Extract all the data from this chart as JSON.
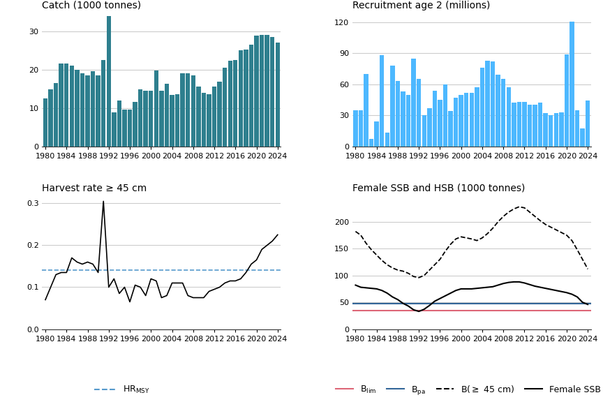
{
  "catch_years": [
    1980,
    1981,
    1982,
    1983,
    1984,
    1985,
    1986,
    1987,
    1988,
    1989,
    1990,
    1991,
    1992,
    1993,
    1994,
    1995,
    1996,
    1997,
    1998,
    1999,
    2000,
    2001,
    2002,
    2003,
    2004,
    2005,
    2006,
    2007,
    2008,
    2009,
    2010,
    2011,
    2012,
    2013,
    2014,
    2015,
    2016,
    2017,
    2018,
    2019,
    2020,
    2021,
    2022,
    2023,
    2024
  ],
  "catch_values": [
    12.5,
    14.8,
    16.5,
    21.5,
    21.5,
    21.0,
    20.0,
    19.0,
    18.5,
    19.5,
    18.5,
    22.5,
    34.0,
    8.8,
    12.0,
    9.5,
    9.5,
    11.5,
    14.8,
    14.5,
    14.5,
    19.7,
    14.5,
    16.3,
    13.3,
    13.5,
    19.0,
    19.0,
    18.5,
    15.5,
    14.0,
    13.5,
    15.5,
    16.8,
    20.5,
    22.3,
    22.5,
    25.0,
    25.2,
    26.5,
    28.8,
    29.0,
    29.0,
    28.5,
    27.0
  ],
  "recruit_years": [
    1980,
    1981,
    1982,
    1983,
    1984,
    1985,
    1986,
    1987,
    1988,
    1989,
    1990,
    1991,
    1992,
    1993,
    1994,
    1995,
    1996,
    1997,
    1998,
    1999,
    2000,
    2001,
    2002,
    2003,
    2004,
    2005,
    2006,
    2007,
    2008,
    2009,
    2010,
    2011,
    2012,
    2013,
    2014,
    2015,
    2016,
    2017,
    2018,
    2019,
    2020,
    2021,
    2022,
    2023,
    2024
  ],
  "recruit_values": [
    35,
    35,
    70,
    7,
    24,
    88,
    13,
    78,
    63,
    53,
    50,
    85,
    65,
    30,
    37,
    54,
    45,
    60,
    34,
    47,
    50,
    52,
    52,
    57,
    76,
    83,
    82,
    69,
    65,
    57,
    42,
    43,
    43,
    40,
    40,
    42,
    32,
    30,
    32,
    33,
    89,
    121,
    35,
    17,
    44
  ],
  "hr_years": [
    1980,
    1981,
    1982,
    1983,
    1984,
    1985,
    1986,
    1987,
    1988,
    1989,
    1990,
    1991,
    1992,
    1993,
    1994,
    1995,
    1996,
    1997,
    1998,
    1999,
    2000,
    2001,
    2002,
    2003,
    2004,
    2005,
    2006,
    2007,
    2008,
    2009,
    2010,
    2011,
    2012,
    2013,
    2014,
    2015,
    2016,
    2017,
    2018,
    2019,
    2020,
    2021,
    2022,
    2023,
    2024
  ],
  "hr_values": [
    0.07,
    0.1,
    0.13,
    0.135,
    0.135,
    0.17,
    0.16,
    0.155,
    0.16,
    0.155,
    0.135,
    0.305,
    0.1,
    0.12,
    0.085,
    0.1,
    0.065,
    0.105,
    0.1,
    0.08,
    0.12,
    0.115,
    0.075,
    0.08,
    0.11,
    0.11,
    0.11,
    0.08,
    0.075,
    0.075,
    0.075,
    0.09,
    0.095,
    0.1,
    0.11,
    0.115,
    0.115,
    0.12,
    0.135,
    0.155,
    0.165,
    0.19,
    0.2,
    0.21,
    0.225
  ],
  "hr_msy": 0.14,
  "ssb_years": [
    1980,
    1981,
    1982,
    1983,
    1984,
    1985,
    1986,
    1987,
    1988,
    1989,
    1990,
    1991,
    1992,
    1993,
    1994,
    1995,
    1996,
    1997,
    1998,
    1999,
    2000,
    2001,
    2002,
    2003,
    2004,
    2005,
    2006,
    2007,
    2008,
    2009,
    2010,
    2011,
    2012,
    2013,
    2014,
    2015,
    2016,
    2017,
    2018,
    2019,
    2020,
    2021,
    2022,
    2023,
    2024
  ],
  "ssb_female": [
    82,
    78,
    77,
    76,
    75,
    72,
    67,
    60,
    55,
    48,
    43,
    36,
    33,
    37,
    44,
    52,
    57,
    62,
    67,
    72,
    75,
    75,
    75,
    76,
    77,
    78,
    79,
    82,
    85,
    87,
    88,
    88,
    86,
    83,
    80,
    78,
    76,
    74,
    72,
    70,
    68,
    65,
    60,
    50,
    46
  ],
  "ssb_b45": [
    182,
    175,
    160,
    148,
    138,
    128,
    120,
    114,
    110,
    108,
    104,
    98,
    96,
    100,
    110,
    120,
    130,
    145,
    158,
    168,
    172,
    170,
    168,
    165,
    170,
    178,
    188,
    200,
    210,
    218,
    224,
    228,
    226,
    218,
    210,
    202,
    195,
    190,
    185,
    180,
    175,
    165,
    148,
    130,
    112
  ],
  "b_lim": 35,
  "b_pa": 48,
  "catch_color": "#2E7F8E",
  "recruit_color": "#4DB8FF",
  "hr_line_color": "#000000",
  "hr_msy_color": "#5599CC",
  "ssb_female_color": "#000000",
  "ssb_b45_color": "#000000",
  "b_lim_color": "#DD6677",
  "b_pa_color": "#336699",
  "catch_title": "Catch (1000 tonnes)",
  "recruit_title": "Recruitment age 2 (millions)",
  "hr_title": "Harvest rate ≥ 45 cm",
  "ssb_title": "Female SSB and HSB (1000 tonnes)",
  "catch_ylim": [
    0,
    35
  ],
  "recruit_ylim": [
    0,
    130
  ],
  "hr_ylim": [
    0.0,
    0.32
  ],
  "ssb_ylim": [
    0,
    250
  ],
  "xmin": 1980,
  "xmax": 2024
}
